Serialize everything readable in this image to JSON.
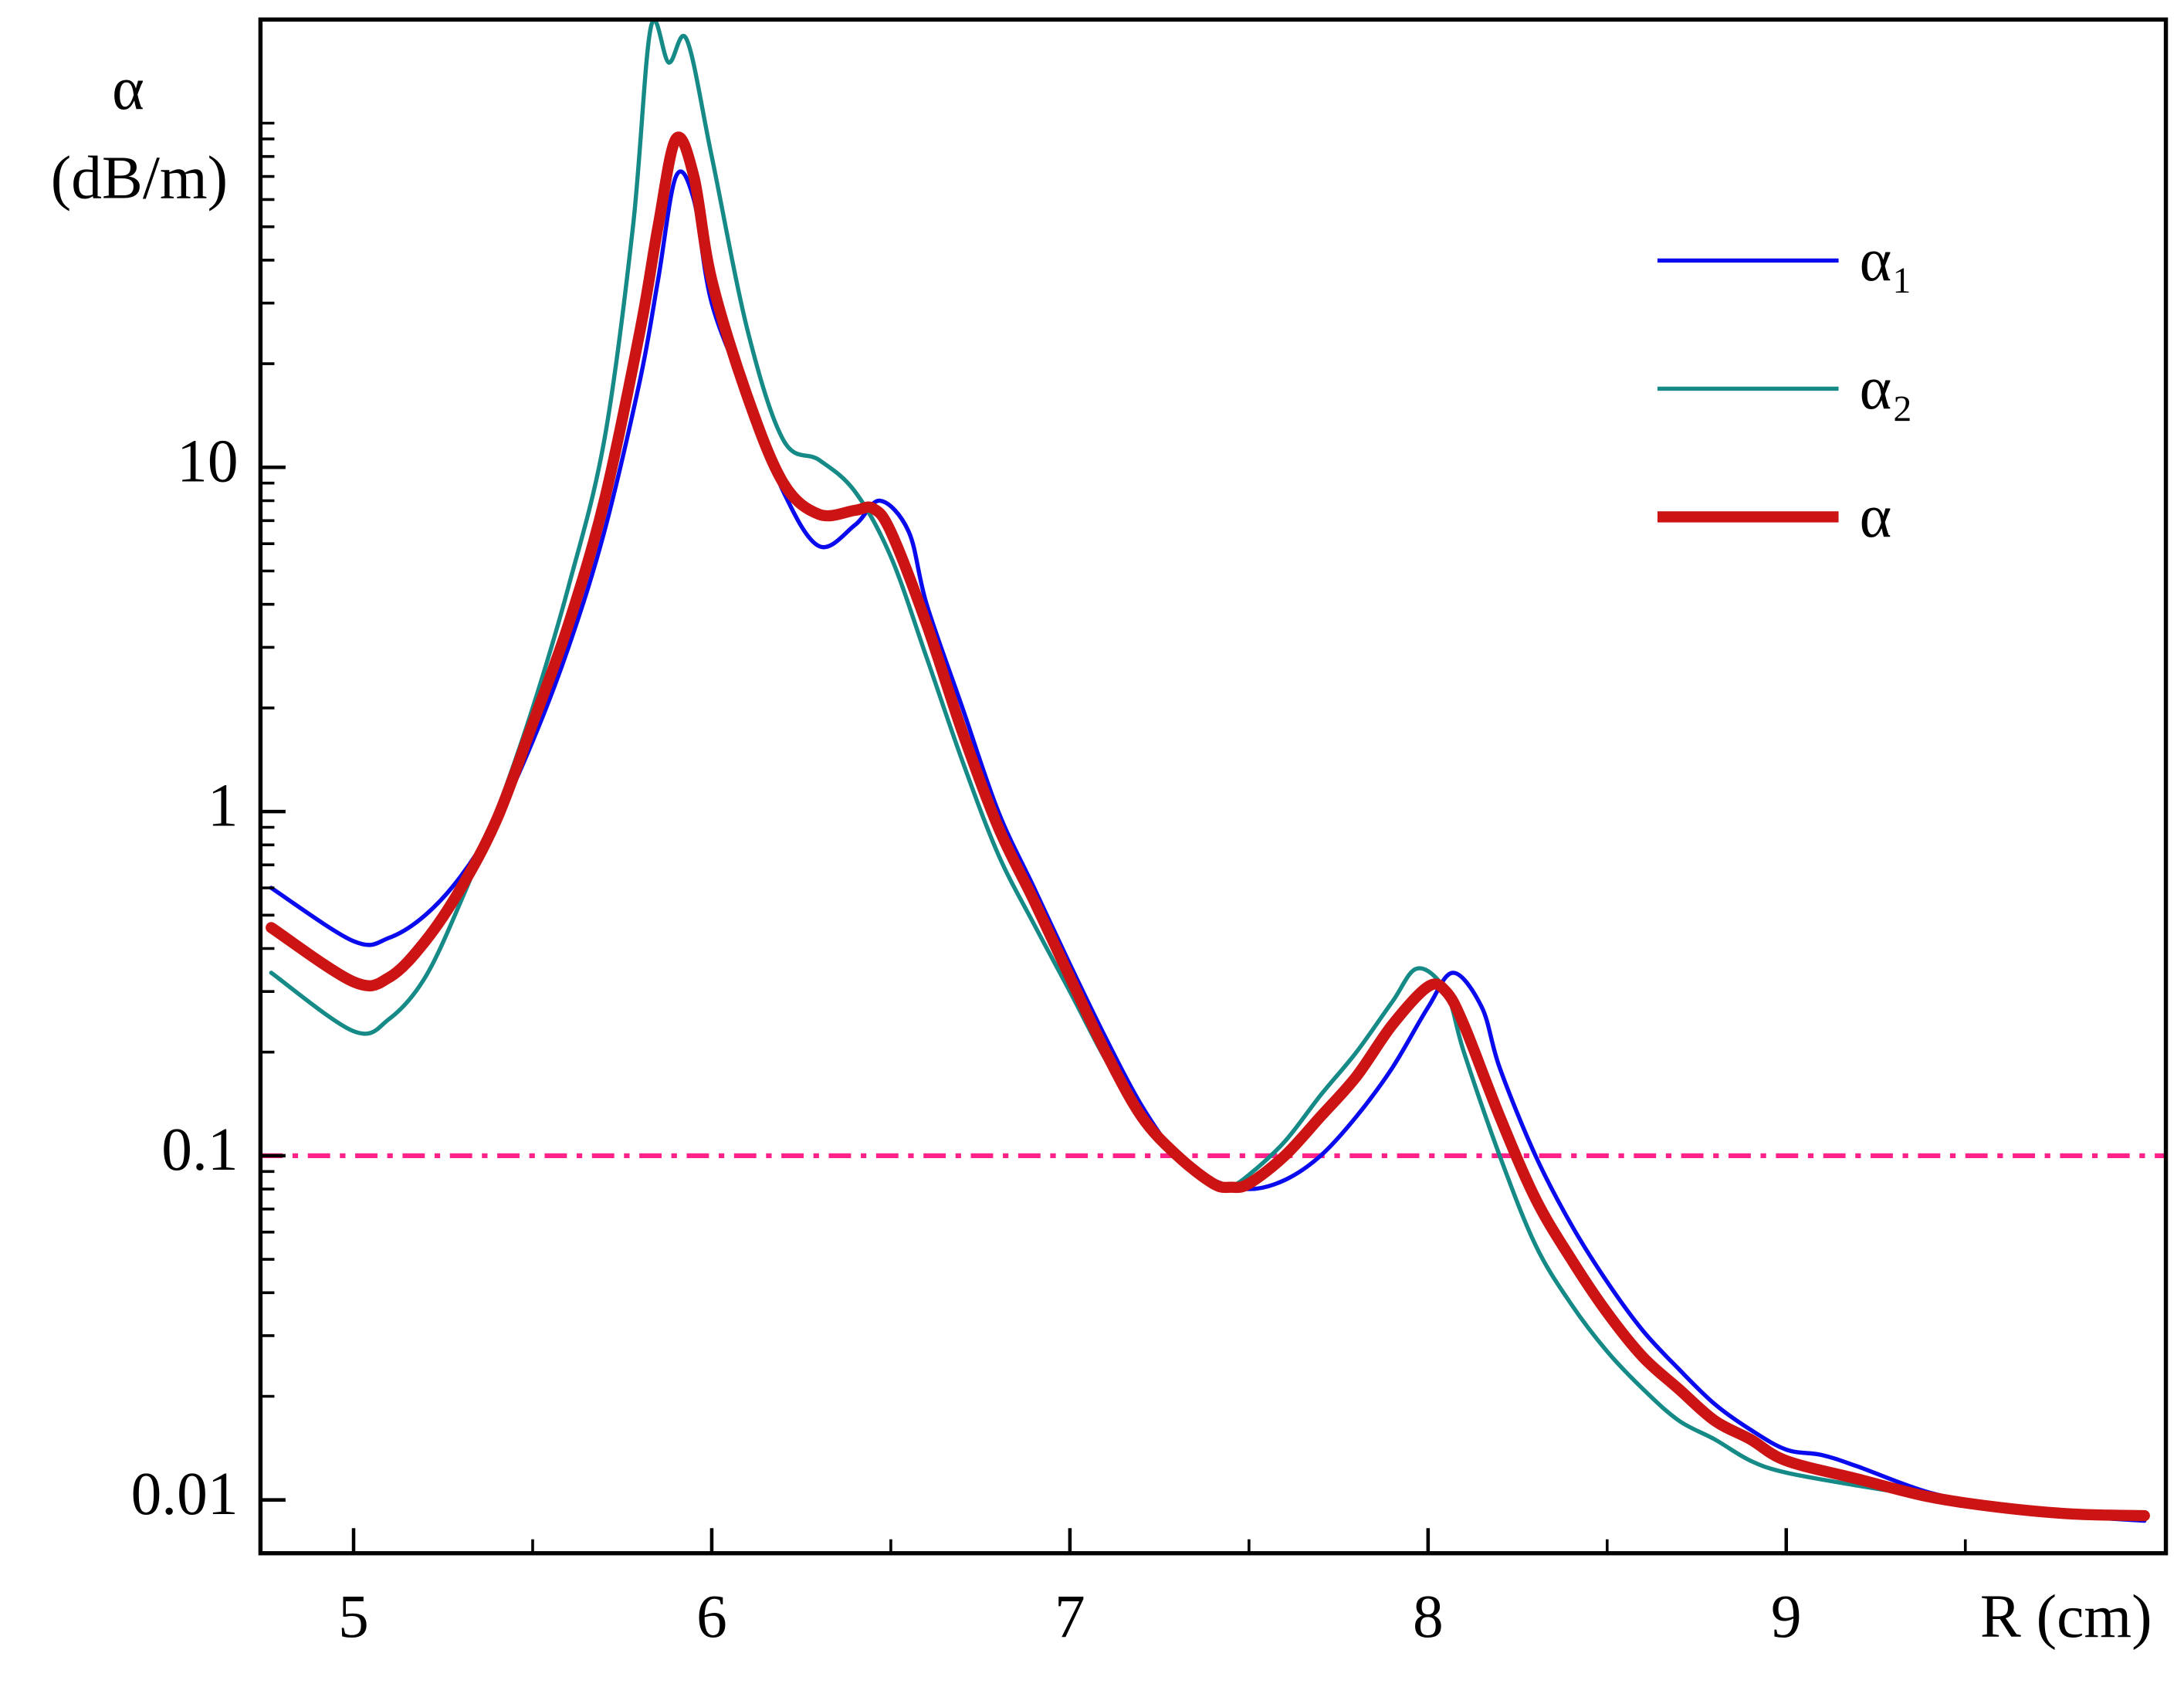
{
  "chart_data": {
    "type": "line",
    "y_label": [
      "α",
      "(dB/m)"
    ],
    "x_label": "R (cm)",
    "log_y": true,
    "xlim": [
      4.74,
      10.06
    ],
    "ylim": [
      0.007,
      200
    ],
    "xticks": [
      5,
      6,
      7,
      8,
      9
    ],
    "x_minor_ticks": [
      5.5,
      6.5,
      7.5,
      8.5,
      9.5
    ],
    "yticks": [
      0.01,
      0.1,
      1,
      10
    ],
    "y_minor_ticks": [
      0.02,
      0.03,
      0.04,
      0.05,
      0.06,
      0.07,
      0.08,
      0.09,
      0.2,
      0.3,
      0.4,
      0.5,
      0.6,
      0.7,
      0.8,
      0.9,
      2,
      3,
      4,
      5,
      6,
      7,
      8,
      9,
      20,
      30,
      40,
      50,
      60,
      70,
      80,
      90,
      100,
      200
    ],
    "reference_line": {
      "value": 0.1,
      "color": "#ff2288"
    },
    "legend": "upper right",
    "series": [
      {
        "name": "α₁",
        "color": "#0a0aee",
        "width": 3,
        "x": [
          4.77,
          5.0,
          5.1,
          5.2,
          5.3,
          5.4,
          5.5,
          5.6,
          5.7,
          5.8,
          5.85,
          5.9,
          5.95,
          6.0,
          6.1,
          6.2,
          6.3,
          6.4,
          6.47,
          6.55,
          6.6,
          6.7,
          6.8,
          6.9,
          7.0,
          7.1,
          7.2,
          7.3,
          7.4,
          7.5,
          7.6,
          7.7,
          7.8,
          7.9,
          8.0,
          8.07,
          8.15,
          8.2,
          8.3,
          8.4,
          8.5,
          8.6,
          8.7,
          8.8,
          8.9,
          9.0,
          9.1,
          9.2,
          9.4,
          9.6,
          9.8,
          10.0
        ],
        "values": [
          0.6,
          0.42,
          0.43,
          0.5,
          0.65,
          0.95,
          1.6,
          3,
          6.5,
          18,
          35,
          70,
          60,
          30,
          16,
          8.5,
          5.9,
          6.8,
          8.0,
          6.5,
          4,
          2,
          1.0,
          0.6,
          0.36,
          0.22,
          0.14,
          0.1,
          0.085,
          0.08,
          0.085,
          0.1,
          0.13,
          0.18,
          0.27,
          0.34,
          0.27,
          0.18,
          0.1,
          0.063,
          0.043,
          0.031,
          0.024,
          0.019,
          0.016,
          0.014,
          0.0135,
          0.0125,
          0.0105,
          0.0096,
          0.009,
          0.0087
        ]
      },
      {
        "name": "α₂",
        "color": "#158a86",
        "width": 3,
        "x": [
          4.77,
          5.0,
          5.1,
          5.2,
          5.3,
          5.4,
          5.5,
          5.6,
          5.7,
          5.78,
          5.83,
          5.88,
          5.93,
          6.0,
          6.1,
          6.2,
          6.3,
          6.4,
          6.5,
          6.6,
          6.7,
          6.8,
          6.9,
          7.0,
          7.1,
          7.2,
          7.3,
          7.4,
          7.45,
          7.5,
          7.6,
          7.7,
          7.8,
          7.9,
          7.97,
          8.05,
          8.1,
          8.2,
          8.3,
          8.4,
          8.5,
          8.6,
          8.7,
          8.8,
          8.9,
          9.0,
          9.2,
          9.4,
          9.6,
          9.8,
          10.0
        ],
        "values": [
          0.34,
          0.23,
          0.25,
          0.33,
          0.55,
          1.0,
          2.0,
          4.5,
          12,
          50,
          190,
          150,
          175,
          80,
          25,
          12,
          10.5,
          8.5,
          5.5,
          2.8,
          1.4,
          0.75,
          0.47,
          0.3,
          0.19,
          0.13,
          0.1,
          0.085,
          0.082,
          0.088,
          0.11,
          0.15,
          0.2,
          0.28,
          0.35,
          0.3,
          0.2,
          0.1,
          0.055,
          0.037,
          0.027,
          0.021,
          0.017,
          0.015,
          0.013,
          0.012,
          0.011,
          0.0102,
          0.0095,
          0.0091,
          0.009
        ]
      },
      {
        "name": "α",
        "color": "#cc1414",
        "width": 8,
        "x": [
          4.77,
          5.0,
          5.1,
          5.2,
          5.3,
          5.4,
          5.5,
          5.6,
          5.7,
          5.8,
          5.85,
          5.9,
          5.95,
          6.0,
          6.1,
          6.2,
          6.3,
          6.4,
          6.45,
          6.5,
          6.6,
          6.7,
          6.8,
          6.9,
          7.0,
          7.1,
          7.2,
          7.3,
          7.4,
          7.45,
          7.5,
          7.6,
          7.7,
          7.8,
          7.9,
          8.0,
          8.05,
          8.1,
          8.2,
          8.3,
          8.4,
          8.5,
          8.6,
          8.7,
          8.8,
          8.9,
          9.0,
          9.2,
          9.4,
          9.6,
          9.8,
          10.0
        ],
        "values": [
          0.46,
          0.32,
          0.33,
          0.42,
          0.6,
          0.95,
          1.8,
          3.5,
          8,
          25,
          50,
          90,
          70,
          35,
          16,
          9,
          7.3,
          7.5,
          7.6,
          6.5,
          3.5,
          1.7,
          0.9,
          0.55,
          0.33,
          0.2,
          0.13,
          0.1,
          0.083,
          0.081,
          0.083,
          0.1,
          0.13,
          0.17,
          0.24,
          0.31,
          0.3,
          0.24,
          0.13,
          0.075,
          0.05,
          0.035,
          0.026,
          0.021,
          0.017,
          0.015,
          0.013,
          0.0115,
          0.0102,
          0.0095,
          0.0091,
          0.009
        ]
      }
    ]
  }
}
